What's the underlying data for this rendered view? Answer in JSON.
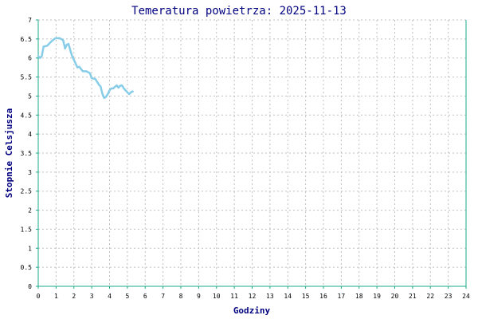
{
  "chart_data": {
    "type": "line",
    "title": "Temeratura powietrza: 2025-11-13",
    "xlabel": "Godziny",
    "ylabel": "Stopnie Celsjusza",
    "xlim": [
      0,
      24
    ],
    "ylim": [
      0,
      7
    ],
    "x_ticks": [
      "0",
      "1",
      "2",
      "3",
      "4",
      "5",
      "6",
      "7",
      "8",
      "9",
      "10",
      "11",
      "12",
      "13",
      "14",
      "15",
      "16",
      "17",
      "18",
      "19",
      "20",
      "21",
      "22",
      "23",
      "24"
    ],
    "y_ticks": [
      "0",
      "0.5",
      "1",
      "1.5",
      "2",
      "2.5",
      "3",
      "3.5",
      "4",
      "4.5",
      "5",
      "5.5",
      "6",
      "6.5",
      "7"
    ],
    "grid": true,
    "colors": {
      "series": "#87cde8",
      "axis": "#1aa88a",
      "grid": "#bfbfbf",
      "title": "#000080"
    },
    "series": [
      {
        "x": [
          0,
          0.1,
          0.2,
          0.3,
          0.5,
          0.7,
          0.9,
          1.0,
          1.2,
          1.4,
          1.5,
          1.6,
          1.7,
          1.8,
          1.9,
          2.0,
          2.2,
          2.3,
          2.5,
          2.7,
          2.9,
          3.0,
          3.2,
          3.4,
          3.5,
          3.6,
          3.7,
          3.8,
          3.9,
          4.0,
          4.1,
          4.2,
          4.4,
          4.5,
          4.6,
          4.7,
          4.8,
          5.0,
          5.1,
          5.2,
          5.3
        ],
        "y": [
          6.05,
          6.0,
          6.05,
          6.3,
          6.32,
          6.42,
          6.5,
          6.52,
          6.52,
          6.47,
          6.25,
          6.35,
          6.37,
          6.2,
          6.05,
          5.95,
          5.75,
          5.77,
          5.65,
          5.65,
          5.6,
          5.47,
          5.45,
          5.3,
          5.25,
          5.05,
          4.95,
          4.98,
          5.05,
          5.15,
          5.2,
          5.2,
          5.28,
          5.22,
          5.27,
          5.28,
          5.2,
          5.1,
          5.05,
          5.1,
          5.12
        ]
      }
    ]
  }
}
